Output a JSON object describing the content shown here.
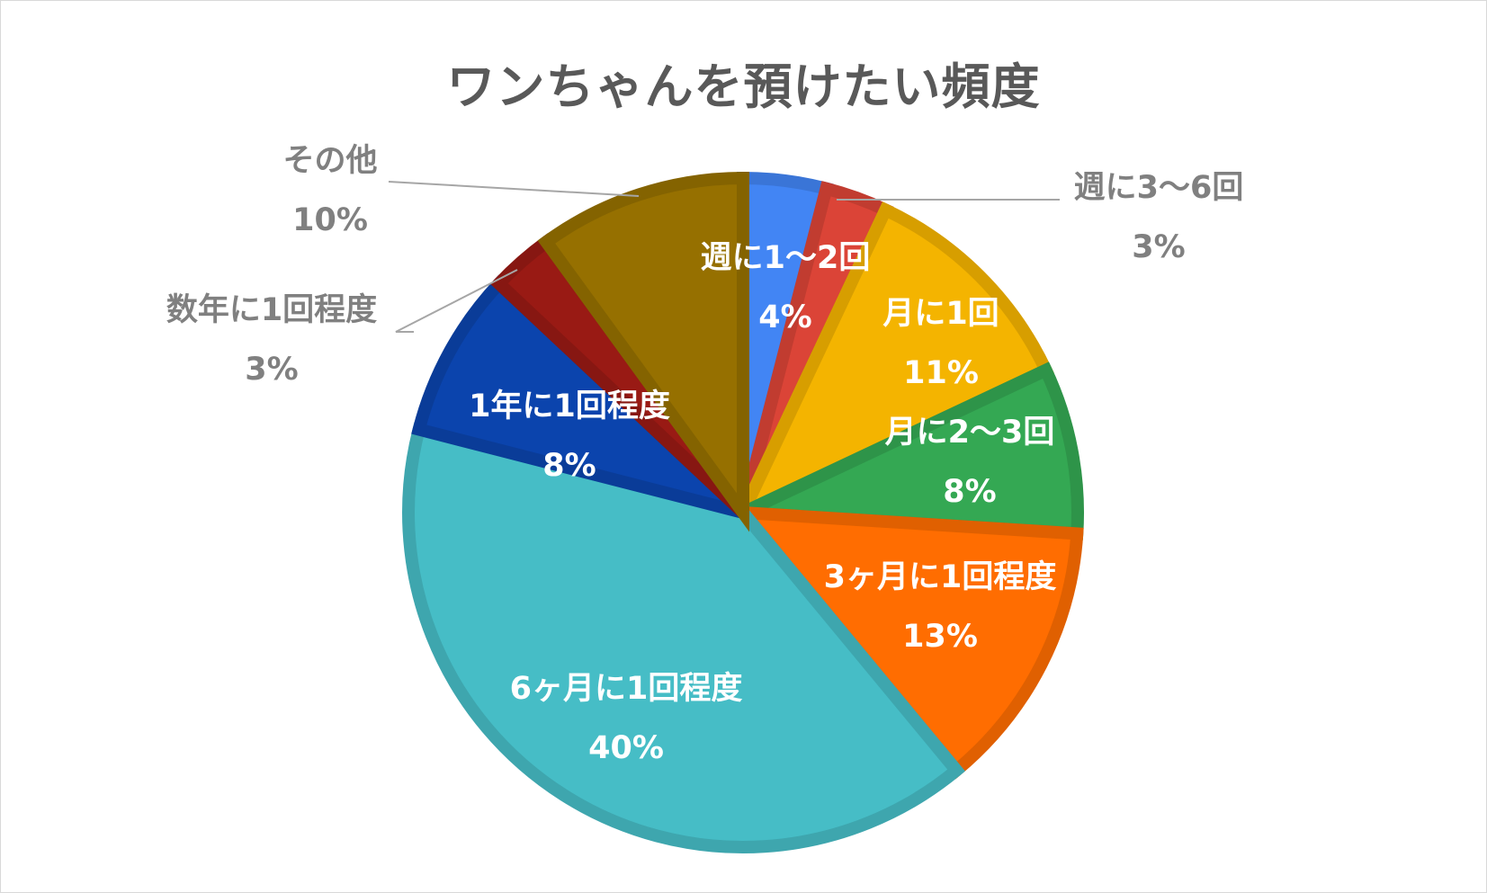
{
  "chart_data": {
    "type": "pie",
    "title": "ワンちゃんを預けたい頻度",
    "legend": "none",
    "slices": [
      {
        "label": "週に1～2回",
        "value": 4,
        "value_label": "4%",
        "color": "#4285F4",
        "label_position": "inside"
      },
      {
        "label": "週に3～6回",
        "value": 3,
        "value_label": "3%",
        "color": "#DB4437",
        "label_position": "outside"
      },
      {
        "label": "月に1回",
        "value": 11,
        "value_label": "11%",
        "color": "#F4B400",
        "label_position": "inside"
      },
      {
        "label": "月に2～3回",
        "value": 8,
        "value_label": "8%",
        "color": "#34A853",
        "label_position": "inside"
      },
      {
        "label": "3ヶ月に1回程度",
        "value": 13,
        "value_label": "13%",
        "color": "#FF6D01",
        "label_position": "inside"
      },
      {
        "label": "6ヶ月に1回程度",
        "value": 40,
        "value_label": "40%",
        "color": "#46BDC6",
        "label_position": "inside"
      },
      {
        "label": "1年に1回程度",
        "value": 8,
        "value_label": "8%",
        "color": "#0B44AD",
        "label_position": "inside"
      },
      {
        "label": "数年に1回程度",
        "value": 3,
        "value_label": "3%",
        "color": "#991A14",
        "label_position": "outside"
      },
      {
        "label": "その他",
        "value": 10,
        "value_label": "10%",
        "color": "#967000",
        "label_position": "outside"
      }
    ]
  }
}
